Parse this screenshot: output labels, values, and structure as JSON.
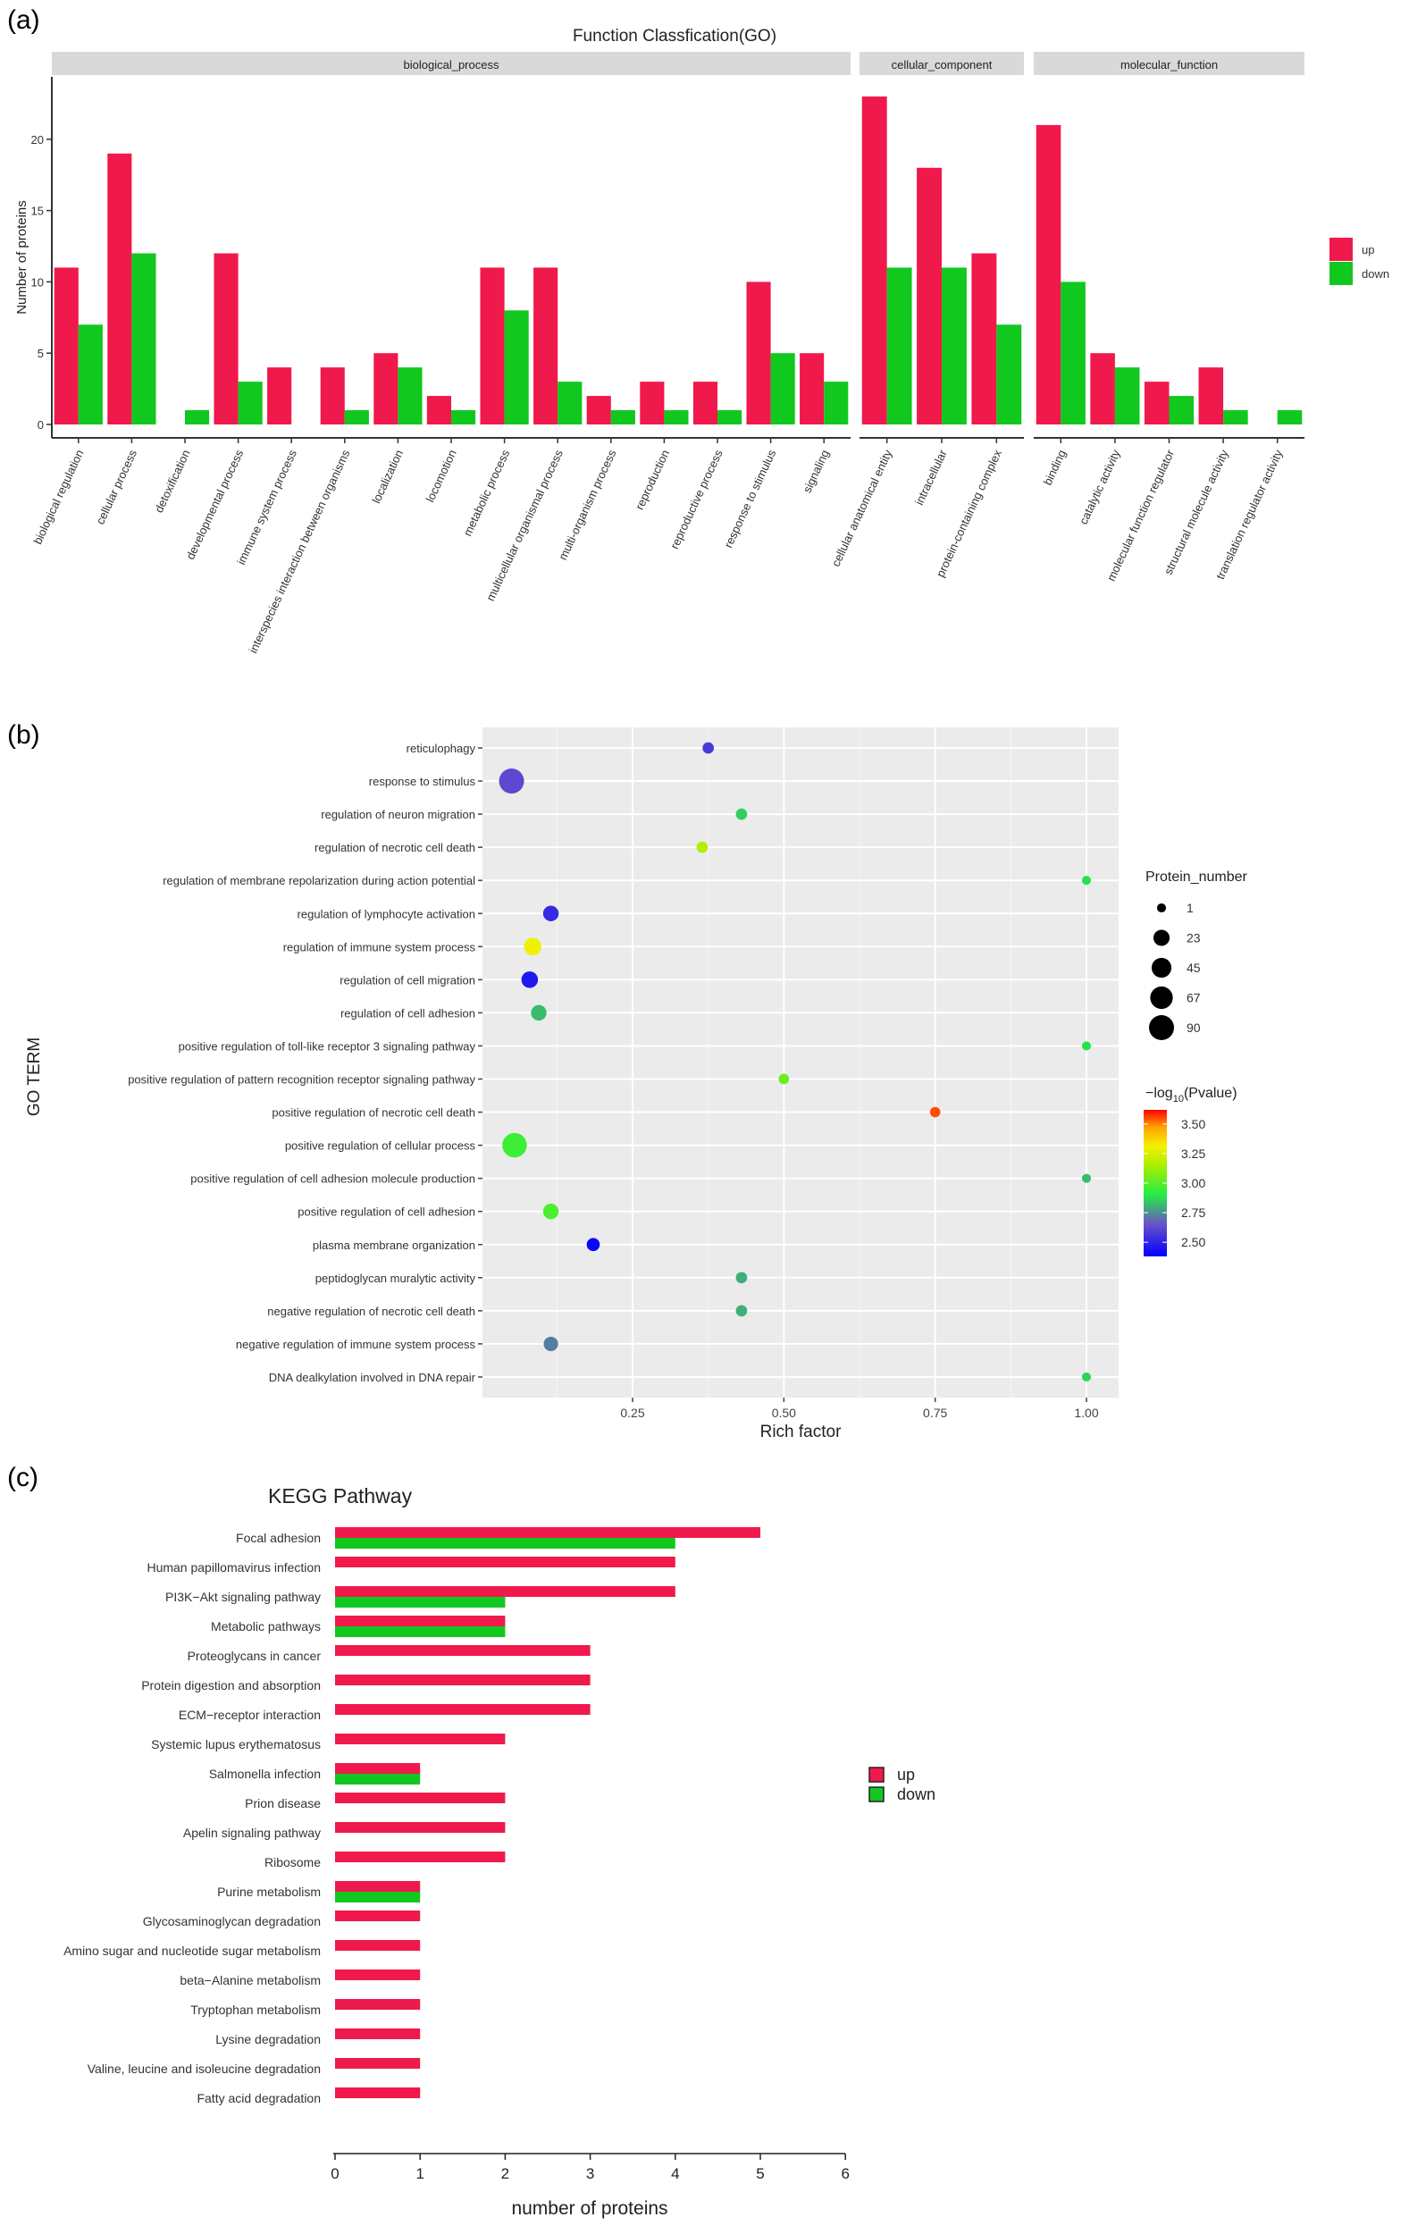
{
  "chart_data": [
    {
      "panel_label": "(a)",
      "type": "bar",
      "title": "Function Classfication(GO)",
      "xlabel": "",
      "ylabel": "Number of proteins",
      "ylim": [
        0,
        23.5
      ],
      "yticks": [
        "0",
        "5",
        "10",
        "15",
        "20"
      ],
      "legend_position": "right",
      "series": [
        {
          "name": "up",
          "color": "#f0194b"
        },
        {
          "name": "down",
          "color": "#11c81f"
        }
      ],
      "facets": [
        {
          "name": "biological_process",
          "categories": [
            "biological regulation",
            "cellular process",
            "detoxification",
            "developmental process",
            "immune system process",
            "interspecies interaction between organisms",
            "localization",
            "locomotion",
            "metabolic process",
            "multicellular organismal process",
            "multi-organism process",
            "reproduction",
            "reproductive process",
            "response to stimulus",
            "signaling"
          ],
          "up": [
            11,
            19,
            0,
            12,
            4,
            4,
            5,
            2,
            11,
            11,
            2,
            3,
            3,
            10,
            5
          ],
          "down": [
            7,
            12,
            1,
            3,
            0,
            1,
            4,
            1,
            8,
            3,
            1,
            1,
            1,
            5,
            3
          ]
        },
        {
          "name": "cellular_component",
          "categories": [
            "cellular anatomical entity",
            "intracellular",
            "protein-containing complex"
          ],
          "up": [
            23,
            18,
            12
          ],
          "down": [
            11,
            11,
            7
          ]
        },
        {
          "name": "molecular_function",
          "categories": [
            "binding",
            "catalytic activity",
            "molecular function regulator",
            "structural molecule activity",
            "translation regulator activity"
          ],
          "up": [
            21,
            5,
            3,
            4,
            0
          ],
          "down": [
            10,
            4,
            2,
            1,
            1
          ]
        }
      ]
    },
    {
      "panel_label": "(b)",
      "type": "scatter",
      "title": "",
      "xlabel": "Rich factor",
      "ylabel": "GO TERM",
      "xlim": [
        0,
        1.05
      ],
      "xticks": [
        "0.25",
        "0.50",
        "0.75",
        "1.00"
      ],
      "terms": [
        "reticulophagy",
        "response to stimulus",
        "regulation of neuron migration",
        "regulation of necrotic cell death",
        "regulation of membrane repolarization during action potential",
        "regulation of lymphocyte activation",
        "regulation of immune system process",
        "regulation of cell migration",
        "regulation of cell adhesion",
        "positive regulation of toll-like receptor 3 signaling pathway",
        "positive regulation of pattern recognition receptor signaling pathway",
        "positive regulation of necrotic cell death",
        "positive regulation of cellular process",
        "positive regulation of cell adhesion molecule production",
        "positive regulation of cell adhesion",
        "plasma membrane organization",
        "peptidoglycan muralytic activity",
        "negative regulation of necrotic cell death",
        "negative regulation of immune system process",
        "DNA dealkylation involved in DNA repair"
      ],
      "rich_factor": [
        0.375,
        0.05,
        0.43,
        0.365,
        1.0,
        0.115,
        0.085,
        0.08,
        0.095,
        1.0,
        0.5,
        0.75,
        0.055,
        1.0,
        0.115,
        0.185,
        0.43,
        0.43,
        0.115,
        1.0
      ],
      "protein_number": [
        5,
        90,
        5,
        5,
        1,
        20,
        30,
        25,
        20,
        1,
        3,
        3,
        85,
        1,
        20,
        10,
        5,
        5,
        15,
        1
      ],
      "neg_log10_pvalue": [
        2.57,
        2.62,
        2.85,
        3.17,
        2.88,
        2.52,
        3.3,
        2.46,
        2.82,
        2.88,
        3.03,
        3.55,
        2.95,
        2.82,
        2.98,
        2.4,
        2.8,
        2.8,
        2.72,
        2.86
      ],
      "size_legend": {
        "title": "Protein_number",
        "values": [
          "1",
          "23",
          "45",
          "67",
          "90"
        ]
      },
      "color_legend": {
        "title_prefix": "−log",
        "title_sub": "10",
        "title_suffix": "(Pvalue)",
        "values": [
          "3.50",
          "3.25",
          "3.00",
          "2.75",
          "2.50"
        ],
        "range": [
          2.38,
          3.62
        ]
      }
    },
    {
      "panel_label": "(c)",
      "type": "bar",
      "orientation": "horizontal",
      "title": "KEGG Pathway",
      "xlabel": "number of proteins",
      "ylabel": "",
      "xlim": [
        0,
        6
      ],
      "xticks": [
        "0",
        "1",
        "2",
        "3",
        "4",
        "5",
        "6"
      ],
      "legend_position": "right",
      "series": [
        {
          "name": "up",
          "color": "#f0194b"
        },
        {
          "name": "down",
          "color": "#11c81f"
        }
      ],
      "categories": [
        "Focal adhesion",
        "Human papillomavirus infection",
        "PI3K−Akt signaling pathway",
        "Metabolic pathways",
        "Proteoglycans in cancer",
        "Protein digestion and absorption",
        "ECM−receptor interaction",
        "Systemic lupus erythematosus",
        "Salmonella infection",
        "Prion disease",
        "Apelin signaling pathway",
        "Ribosome",
        "Purine metabolism",
        "Glycosaminoglycan degradation",
        "Amino sugar and nucleotide sugar metabolism",
        "beta−Alanine metabolism",
        "Tryptophan metabolism",
        "Lysine degradation",
        "Valine, leucine and isoleucine degradation",
        "Fatty acid degradation"
      ],
      "up": [
        5,
        4,
        4,
        2,
        3,
        3,
        3,
        2,
        1,
        2,
        2,
        2,
        1,
        1,
        1,
        1,
        1,
        1,
        1,
        1
      ],
      "down": [
        4,
        0,
        2,
        2,
        0,
        0,
        0,
        0,
        1,
        0,
        0,
        0,
        1,
        0,
        0,
        0,
        0,
        0,
        0,
        0
      ]
    }
  ]
}
